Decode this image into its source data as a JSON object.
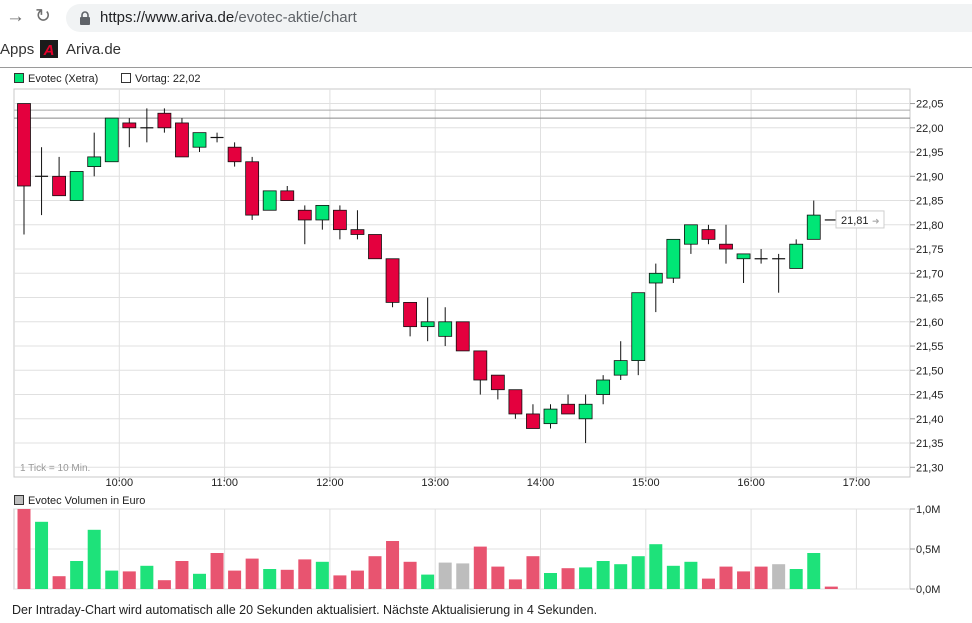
{
  "browser": {
    "url_host": "https://www.ariva.de",
    "url_path": "/evotec-aktie/chart",
    "back_icon": "back-arrow-icon",
    "reload_icon": "reload-icon",
    "lock_icon": "lock-icon"
  },
  "bookmarks": {
    "apps": "Apps",
    "ariva": "Ariva.de",
    "ariva_logo_letter": "A"
  },
  "colors": {
    "up": "#00e676",
    "down": "#e4003e",
    "vol_up": "#1ee27a",
    "vol_down": "#e85470",
    "vol_neutral": "#bdbdbd",
    "grid": "#e0e0e0"
  },
  "footer": {
    "text": "Der Intraday-Chart wird automatisch alle 20 Sekunden aktualisiert. Nächste Aktualisierung in 4 Sekunden."
  },
  "chart_data": [
    {
      "type": "candlestick",
      "title": "",
      "legend": [
        "Evotec (Xetra)",
        "Vortag: 22,02"
      ],
      "previous_close": 22.02,
      "last_price": 21.81,
      "last_price_label": "21,81",
      "tick_note": "1 Tick = 10 Min.",
      "ylim": [
        21.28,
        22.08
      ],
      "y_ticks": [
        "22,05",
        "22,00",
        "21,95",
        "21,90",
        "21,85",
        "21,80",
        "21,75",
        "21,70",
        "21,65",
        "21,60",
        "21,55",
        "21,50",
        "21,45",
        "21,40",
        "21,35",
        "21,30"
      ],
      "y_tick_values": [
        22.05,
        22.0,
        21.95,
        21.9,
        21.85,
        21.8,
        21.75,
        21.7,
        21.65,
        21.6,
        21.55,
        21.5,
        21.45,
        21.4,
        21.35,
        21.3
      ],
      "x_ticks": [
        "10:00",
        "11:00",
        "12:00",
        "13:00",
        "14:00",
        "15:00",
        "16:00",
        "17:00"
      ],
      "x_tick_minutes": [
        600,
        660,
        720,
        780,
        840,
        900,
        960,
        1020
      ],
      "start_minute": 540,
      "interval_minutes": 10,
      "candles": [
        {
          "o": 22.05,
          "h": 22.05,
          "l": 21.78,
          "c": 21.88
        },
        {
          "o": 21.9,
          "h": 21.96,
          "l": 21.82,
          "c": 21.9
        },
        {
          "o": 21.9,
          "h": 21.94,
          "l": 21.86,
          "c": 21.86
        },
        {
          "o": 21.85,
          "h": 21.91,
          "l": 21.85,
          "c": 21.91
        },
        {
          "o": 21.92,
          "h": 21.99,
          "l": 21.9,
          "c": 21.94
        },
        {
          "o": 21.93,
          "h": 22.02,
          "l": 21.93,
          "c": 22.02
        },
        {
          "o": 22.01,
          "h": 22.02,
          "l": 21.96,
          "c": 22.0
        },
        {
          "o": 22.0,
          "h": 22.04,
          "l": 21.97,
          "c": 22.0
        },
        {
          "o": 22.03,
          "h": 22.04,
          "l": 21.99,
          "c": 22.0
        },
        {
          "o": 22.01,
          "h": 22.02,
          "l": 21.94,
          "c": 21.94
        },
        {
          "o": 21.96,
          "h": 21.99,
          "l": 21.95,
          "c": 21.99
        },
        {
          "o": 21.98,
          "h": 21.99,
          "l": 21.97,
          "c": 21.98
        },
        {
          "o": 21.96,
          "h": 21.97,
          "l": 21.92,
          "c": 21.93
        },
        {
          "o": 21.93,
          "h": 21.94,
          "l": 21.81,
          "c": 21.82
        },
        {
          "o": 21.83,
          "h": 21.87,
          "l": 21.83,
          "c": 21.87
        },
        {
          "o": 21.87,
          "h": 21.88,
          "l": 21.85,
          "c": 21.85
        },
        {
          "o": 21.83,
          "h": 21.84,
          "l": 21.76,
          "c": 21.81
        },
        {
          "o": 21.81,
          "h": 21.84,
          "l": 21.79,
          "c": 21.84
        },
        {
          "o": 21.83,
          "h": 21.84,
          "l": 21.77,
          "c": 21.79
        },
        {
          "o": 21.79,
          "h": 21.83,
          "l": 21.77,
          "c": 21.78
        },
        {
          "o": 21.78,
          "h": 21.78,
          "l": 21.73,
          "c": 21.73
        },
        {
          "o": 21.73,
          "h": 21.73,
          "l": 21.63,
          "c": 21.64
        },
        {
          "o": 21.64,
          "h": 21.64,
          "l": 21.57,
          "c": 21.59
        },
        {
          "o": 21.59,
          "h": 21.65,
          "l": 21.56,
          "c": 21.6
        },
        {
          "o": 21.57,
          "h": 21.63,
          "l": 21.55,
          "c": 21.6
        },
        {
          "o": 21.6,
          "h": 21.6,
          "l": 21.54,
          "c": 21.54
        },
        {
          "o": 21.54,
          "h": 21.54,
          "l": 21.45,
          "c": 21.48
        },
        {
          "o": 21.49,
          "h": 21.49,
          "l": 21.44,
          "c": 21.46
        },
        {
          "o": 21.46,
          "h": 21.46,
          "l": 21.4,
          "c": 21.41
        },
        {
          "o": 21.41,
          "h": 21.43,
          "l": 21.38,
          "c": 21.38
        },
        {
          "o": 21.39,
          "h": 21.43,
          "l": 21.38,
          "c": 21.42
        },
        {
          "o": 21.43,
          "h": 21.45,
          "l": 21.41,
          "c": 21.41
        },
        {
          "o": 21.4,
          "h": 21.45,
          "l": 21.35,
          "c": 21.43
        },
        {
          "o": 21.45,
          "h": 21.49,
          "l": 21.43,
          "c": 21.48
        },
        {
          "o": 21.49,
          "h": 21.56,
          "l": 21.48,
          "c": 21.52
        },
        {
          "o": 21.52,
          "h": 21.66,
          "l": 21.49,
          "c": 21.66
        },
        {
          "o": 21.68,
          "h": 21.72,
          "l": 21.62,
          "c": 21.7
        },
        {
          "o": 21.69,
          "h": 21.77,
          "l": 21.68,
          "c": 21.77
        },
        {
          "o": 21.76,
          "h": 21.8,
          "l": 21.74,
          "c": 21.8
        },
        {
          "o": 21.79,
          "h": 21.8,
          "l": 21.76,
          "c": 21.77
        },
        {
          "o": 21.76,
          "h": 21.8,
          "l": 21.72,
          "c": 21.75
        },
        {
          "o": 21.73,
          "h": 21.74,
          "l": 21.68,
          "c": 21.74
        },
        {
          "o": 21.73,
          "h": 21.75,
          "l": 21.72,
          "c": 21.73
        },
        {
          "o": 21.73,
          "h": 21.74,
          "l": 21.66,
          "c": 21.73
        },
        {
          "o": 21.71,
          "h": 21.77,
          "l": 21.71,
          "c": 21.76
        },
        {
          "o": 21.77,
          "h": 21.85,
          "l": 21.77,
          "c": 21.82
        },
        {
          "o": 21.81,
          "h": 21.81,
          "l": 21.81,
          "c": 21.81
        }
      ]
    },
    {
      "type": "bar",
      "title": "",
      "legend": [
        "Evotec Volumen in Euro"
      ],
      "ylim": [
        0,
        1.0
      ],
      "y_ticks": [
        "1,0M",
        "0,5M",
        "0,0M"
      ],
      "y_tick_values": [
        1.0,
        0.5,
        0.0
      ],
      "unit": "M EUR",
      "values": [
        1.0,
        0.84,
        0.16,
        0.35,
        0.74,
        0.23,
        0.22,
        0.29,
        0.11,
        0.35,
        0.19,
        0.45,
        0.23,
        0.38,
        0.25,
        0.24,
        0.37,
        0.34,
        0.17,
        0.23,
        0.41,
        0.6,
        0.34,
        0.18,
        0.33,
        0.32,
        0.53,
        0.28,
        0.12,
        0.41,
        0.2,
        0.26,
        0.27,
        0.35,
        0.31,
        0.41,
        0.56,
        0.29,
        0.34,
        0.13,
        0.28,
        0.22,
        0.28,
        0.31,
        0.25,
        0.45,
        0.03
      ],
      "direction": [
        "down",
        "up",
        "down",
        "up",
        "up",
        "up",
        "down",
        "up",
        "down",
        "down",
        "up",
        "down",
        "down",
        "down",
        "up",
        "down",
        "down",
        "up",
        "down",
        "down",
        "down",
        "down",
        "down",
        "up",
        "neutral",
        "neutral",
        "down",
        "down",
        "down",
        "down",
        "up",
        "down",
        "up",
        "up",
        "up",
        "up",
        "up",
        "up",
        "up",
        "down",
        "down",
        "down",
        "down",
        "neutral",
        "up",
        "up",
        "down"
      ]
    }
  ]
}
